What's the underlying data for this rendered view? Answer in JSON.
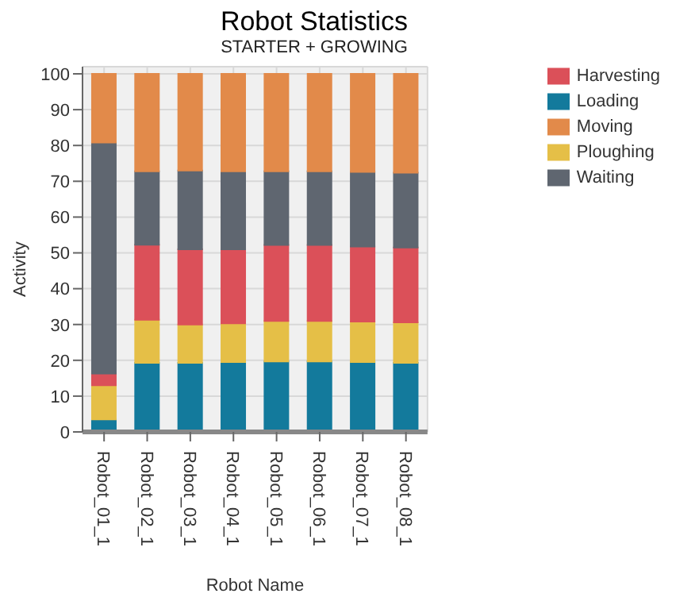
{
  "chart_data": {
    "type": "bar",
    "title": "Robot Statistics",
    "subtitle": "STARTER + GROWING",
    "xlabel": "Robot Name",
    "ylabel": "Activity",
    "categories": [
      "Robot_01_1",
      "Robot_02_1",
      "Robot_03_1",
      "Robot_04_1",
      "Robot_05_1",
      "Robot_06_1",
      "Robot_07_1",
      "Robot_08_1"
    ],
    "stacked": true,
    "series": [
      {
        "name": "Loading",
        "color": "#137a9c",
        "values": [
          3.5,
          19.3,
          19.3,
          19.5,
          19.7,
          19.7,
          19.5,
          19.3
        ]
      },
      {
        "name": "Ploughing",
        "color": "#e5bf47",
        "values": [
          9.5,
          12,
          10.7,
          10.8,
          11.3,
          11.3,
          11.3,
          11.3
        ]
      },
      {
        "name": "Harvesting",
        "color": "#db5059",
        "values": [
          3.3,
          21,
          21,
          20.7,
          21.2,
          21.2,
          21,
          20.9
        ]
      },
      {
        "name": "Waiting",
        "color": "#5f6670",
        "values": [
          64.5,
          20.5,
          22,
          21.8,
          20.6,
          20.6,
          20.8,
          20.9
        ]
      },
      {
        "name": "Moving",
        "color": "#e28a4a",
        "values": [
          19.2,
          27.2,
          27,
          27.2,
          27.2,
          27.2,
          27.4,
          27.6
        ]
      }
    ],
    "ylim": [
      0,
      102
    ],
    "yticks": [
      0,
      10,
      20,
      30,
      40,
      50,
      60,
      70,
      80,
      90,
      100
    ],
    "grid": true,
    "legend": "top right"
  }
}
